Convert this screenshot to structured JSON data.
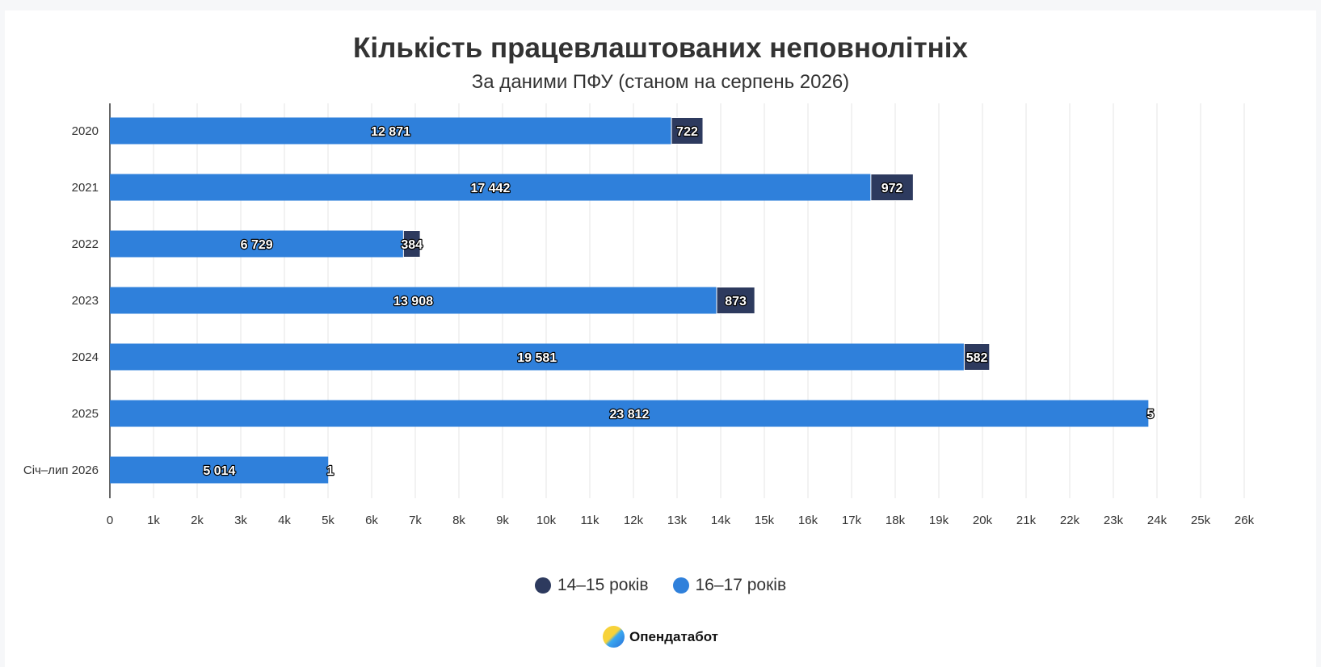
{
  "title": "Кількість працевлаштованих неповнолітніх",
  "subtitle": "За даними ПФУ (станом на серпень 2026)",
  "brand": {
    "name": "Опендатабот"
  },
  "colors": {
    "series_16_17": "#2f80db",
    "series_14_15": "#2d3a5e",
    "grid": "#e6e6e6",
    "axis": "#333333"
  },
  "chart_data": {
    "type": "bar",
    "orientation": "horizontal",
    "stacked": true,
    "categories": [
      "2020",
      "2021",
      "2022",
      "2023",
      "2024",
      "2025",
      "Січ–лип 2026"
    ],
    "series": [
      {
        "name": "16–17 років",
        "values": [
          12871,
          17442,
          6729,
          13908,
          19581,
          23812,
          5014
        ],
        "labels": [
          "12 871",
          "17 442",
          "6 729",
          "13 908",
          "19 581",
          "23 812",
          "5 014"
        ],
        "color": "#2f80db"
      },
      {
        "name": "14–15 років",
        "values": [
          722,
          972,
          384,
          873,
          582,
          5,
          1
        ],
        "labels": [
          "722",
          "972",
          "384",
          "873",
          "582",
          "5",
          "1"
        ],
        "color": "#2d3a5e"
      }
    ],
    "xlim": [
      0,
      26000
    ],
    "x_ticks": [
      "0",
      "1k",
      "2k",
      "3k",
      "4k",
      "5k",
      "6k",
      "7k",
      "8k",
      "9k",
      "10k",
      "11k",
      "12k",
      "13k",
      "14k",
      "15k",
      "16k",
      "17k",
      "18k",
      "19k",
      "20k",
      "21k",
      "22k",
      "23k",
      "24k",
      "25k",
      "26k"
    ],
    "grid": true,
    "legend_position": "bottom",
    "legend_order": [
      "14–15 років",
      "16–17 років"
    ]
  }
}
